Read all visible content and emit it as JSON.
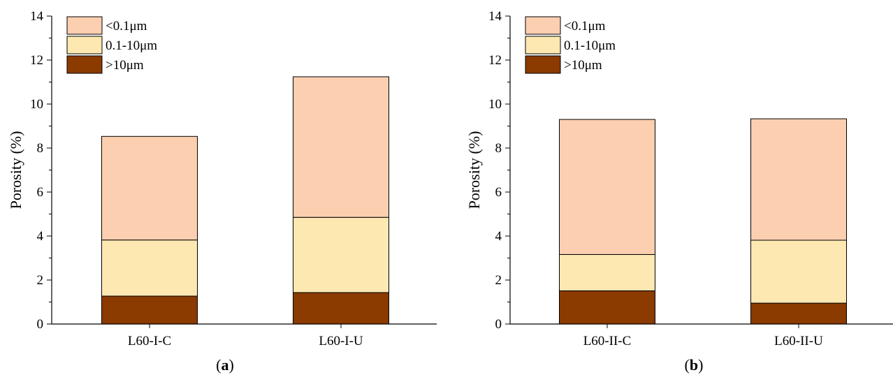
{
  "chart_data": [
    {
      "type": "bar",
      "stacked": true,
      "panel_label": "a",
      "categories": [
        "L60-I-C",
        "L60-I-U"
      ],
      "ylabel": "Porosity (%)",
      "ylim": [
        0,
        14
      ],
      "yticks": [
        0,
        2,
        4,
        6,
        8,
        10,
        12,
        14
      ],
      "grid": false,
      "legend_position": "top-left",
      "series": [
        {
          "name": ">10μm",
          "color": "#8B3A00",
          "values": [
            1.27,
            1.43
          ]
        },
        {
          "name": "0.1-10μm",
          "color": "#FDE8B2",
          "values": [
            2.55,
            3.42
          ]
        },
        {
          "name": "<0.1μm",
          "color": "#FCCFB0",
          "values": [
            4.71,
            6.39
          ]
        }
      ]
    },
    {
      "type": "bar",
      "stacked": true,
      "panel_label": "b",
      "categories": [
        "L60-II-C",
        "L60-II-U"
      ],
      "ylabel": "Porosity (%)",
      "ylim": [
        0,
        14
      ],
      "yticks": [
        0,
        2,
        4,
        6,
        8,
        10,
        12,
        14
      ],
      "grid": false,
      "legend_position": "top-left",
      "series": [
        {
          "name": ">10μm",
          "color": "#8B3A00",
          "values": [
            1.51,
            0.95
          ]
        },
        {
          "name": "0.1-10μm",
          "color": "#FDE8B2",
          "values": [
            1.65,
            2.86
          ]
        },
        {
          "name": "<0.1μm",
          "color": "#FCCFB0",
          "values": [
            6.14,
            5.52
          ]
        }
      ]
    }
  ]
}
